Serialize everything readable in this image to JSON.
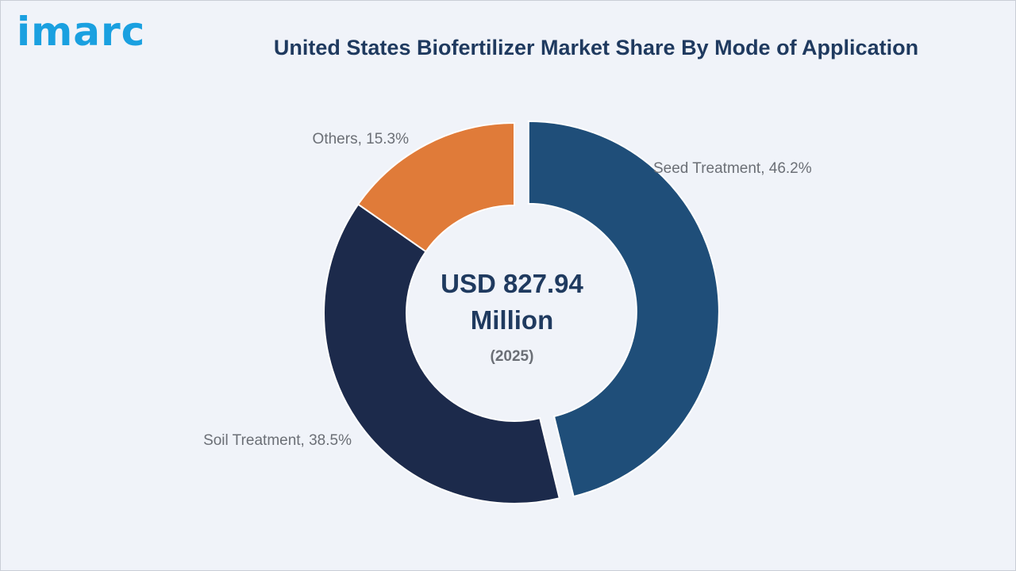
{
  "brand": {
    "logo_text": "imarc",
    "logo_color": "#1aa0e0"
  },
  "chart_data": {
    "type": "pie",
    "title": "United States Biofertilizer Market Share By Mode of Application",
    "center_label": {
      "line1": "USD 827.94",
      "line2": "Million",
      "year": "(2025)"
    },
    "categories": [
      "Seed Treatment",
      "Soil Treatment",
      "Others"
    ],
    "values": [
      46.2,
      38.5,
      15.3
    ],
    "unit": "%",
    "colors": [
      "#1f4e79",
      "#1c2a4b",
      "#e07b39"
    ],
    "labels": [
      "Seed Treatment, 46.2%",
      "Soil Treatment, 38.5%",
      "Others, 15.3%"
    ],
    "exploded": "Seed Treatment",
    "hole": "donut"
  }
}
